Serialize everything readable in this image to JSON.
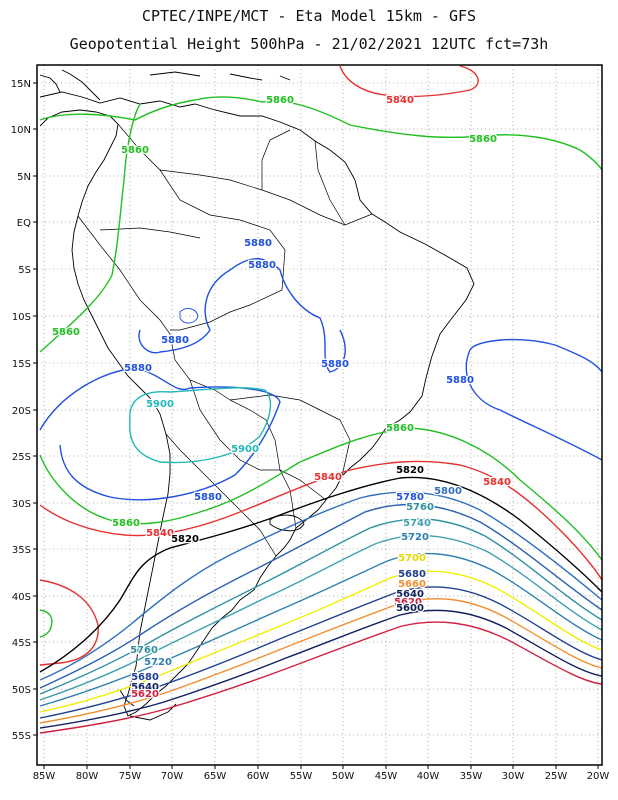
{
  "header": {
    "title_line1": "CPTEC/INPE/MCT -  Eta Model 15km - GFS",
    "title_line2": "Geopotential Height 500hPa - 21/02/2021 12UTC fct=73h"
  },
  "axes": {
    "lat_labels": [
      "15N",
      "10N",
      "5N",
      "EQ",
      "5S",
      "10S",
      "15S",
      "20S",
      "25S",
      "30S",
      "35S",
      "40S",
      "45S",
      "50S",
      "55S"
    ],
    "lon_labels": [
      "85W",
      "80W",
      "75W",
      "70W",
      "65W",
      "60W",
      "55W",
      "50W",
      "45W",
      "40W",
      "35W",
      "30W",
      "25W",
      "20W"
    ]
  },
  "colors": {
    "c5900": "#20b8b8",
    "c5880": "#2050e0",
    "c5860": "#20c020",
    "c5840": "#e83030",
    "c5820": "#000000",
    "c5800": "#3070c0",
    "c5780": "#2a60b0",
    "c5760": "#3090a0",
    "c5740": "#40a0b0",
    "c5720": "#2f7fb0",
    "c5700": "#f0f000",
    "c5680": "#204090",
    "c5660": "#f09030",
    "c5640": "#102060",
    "c5620": "#d02040",
    "c5600": "#102050"
  },
  "contour_labels": [
    {
      "text": "5840",
      "color": "#e83030"
    },
    {
      "text": "5860",
      "color": "#20c020"
    },
    {
      "text": "5860",
      "color": "#20c020"
    },
    {
      "text": "5860",
      "color": "#20c020"
    },
    {
      "text": "5880",
      "color": "#2050e0"
    },
    {
      "text": "5860",
      "color": "#20c020"
    },
    {
      "text": "5880",
      "color": "#2050e0"
    },
    {
      "text": "5880",
      "color": "#2050e0"
    },
    {
      "text": "5880",
      "color": "#2050e0"
    },
    {
      "text": "5880",
      "color": "#2050e0"
    },
    {
      "text": "5880",
      "color": "#2050e0"
    },
    {
      "text": "5900",
      "color": "#20b8b8"
    },
    {
      "text": "5900",
      "color": "#20b8b8"
    },
    {
      "text": "5860",
      "color": "#20c020"
    },
    {
      "text": "5840",
      "color": "#e83030"
    },
    {
      "text": "5840",
      "color": "#e83030"
    },
    {
      "text": "5820",
      "color": "#000000"
    },
    {
      "text": "5780",
      "color": "#2050e0"
    },
    {
      "text": "5800",
      "color": "#3070c0"
    },
    {
      "text": "5760",
      "color": "#3090a0"
    },
    {
      "text": "5740",
      "color": "#40a0b0"
    },
    {
      "text": "5720",
      "color": "#2f7fb0"
    },
    {
      "text": "5880",
      "color": "#2050e0"
    },
    {
      "text": "5860",
      "color": "#20c020"
    },
    {
      "text": "5840",
      "color": "#e83030"
    },
    {
      "text": "5820",
      "color": "#000000"
    },
    {
      "text": "5700",
      "color": "#e8d800"
    },
    {
      "text": "5680",
      "color": "#204090"
    },
    {
      "text": "5660",
      "color": "#f09030"
    },
    {
      "text": "5640",
      "color": "#102060"
    },
    {
      "text": "5620",
      "color": "#d02040"
    },
    {
      "text": "5600",
      "color": "#102050"
    },
    {
      "text": "5760",
      "color": "#3090a0"
    },
    {
      "text": "5720",
      "color": "#2f7fb0"
    },
    {
      "text": "5680",
      "color": "#204090"
    },
    {
      "text": "5640",
      "color": "#102060"
    },
    {
      "text": "5620",
      "color": "#d02040"
    }
  ]
}
